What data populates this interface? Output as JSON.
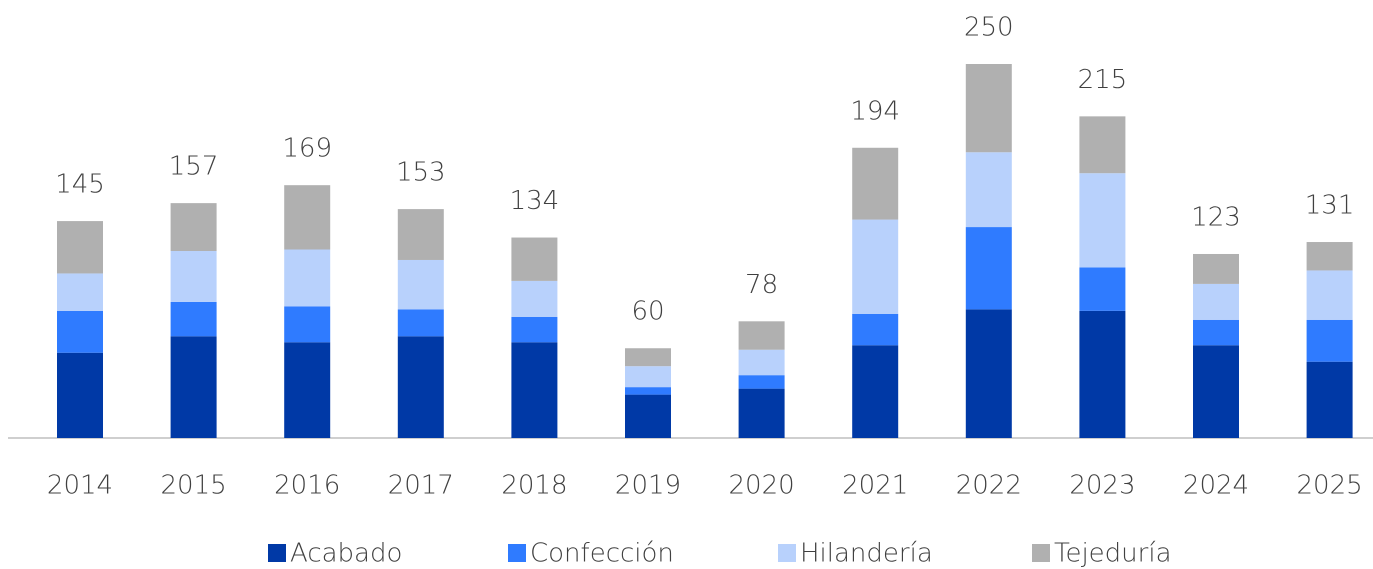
{
  "chart_data": {
    "type": "stacked_bar",
    "categories": [
      "2014",
      "2015",
      "2016",
      "2017",
      "2018",
      "2019",
      "2020",
      "2021",
      "2022",
      "2023",
      "2024",
      "2025"
    ],
    "series": [
      {
        "name": "Acabado",
        "color": "#0039a6",
        "values": [
          57,
          68,
          64,
          68,
          64,
          29,
          33,
          62,
          86,
          85,
          62,
          51
        ]
      },
      {
        "name": "Confección",
        "color": "#2f7bff",
        "values": [
          28,
          23,
          24,
          18,
          17,
          5,
          9,
          21,
          55,
          29,
          17,
          28
        ]
      },
      {
        "name": "Hilandería",
        "color": "#b8d1fc",
        "values": [
          25,
          34,
          38,
          33,
          24,
          14,
          17,
          63,
          50,
          63,
          24,
          33
        ]
      },
      {
        "name": "Tejeduría",
        "color": "#b0b0b0",
        "values": [
          35,
          32,
          43,
          34,
          29,
          12,
          19,
          48,
          59,
          38,
          20,
          19
        ]
      }
    ],
    "totals": [
      145,
      157,
      169,
      153,
      134,
      60,
      78,
      194,
      250,
      215,
      123,
      131
    ],
    "ylim": [
      0,
      250
    ],
    "legend": "bottom"
  }
}
